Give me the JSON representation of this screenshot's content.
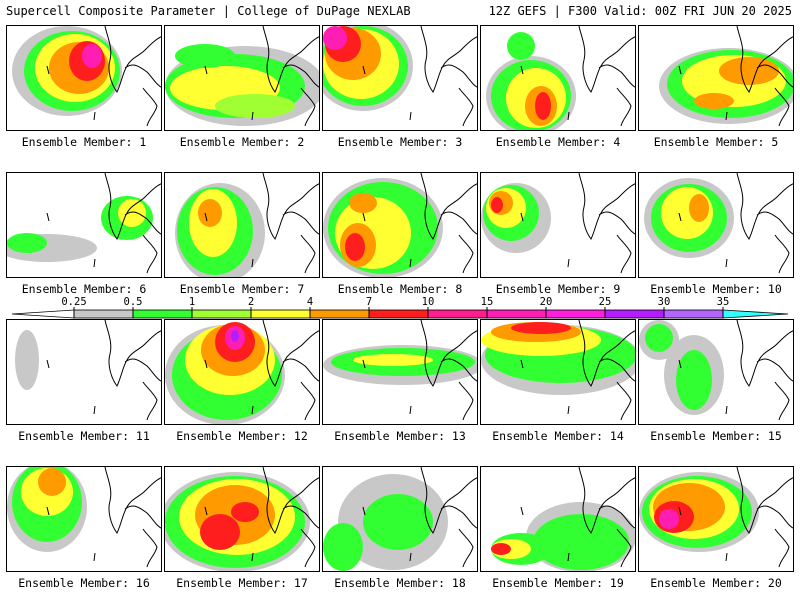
{
  "header": {
    "title": "Supercell Composite Parameter | College of DuPage NEXLAB",
    "run_info": "12Z GEFS | F300 Valid: 00Z FRI JUN 20 2025"
  },
  "panels": [
    {
      "label": "Ensemble Member: 1"
    },
    {
      "label": "Ensemble Member: 2"
    },
    {
      "label": "Ensemble Member: 3"
    },
    {
      "label": "Ensemble Member: 4"
    },
    {
      "label": "Ensemble Member: 5"
    },
    {
      "label": "Ensemble Member: 6"
    },
    {
      "label": "Ensemble Member: 7"
    },
    {
      "label": "Ensemble Member: 8"
    },
    {
      "label": "Ensemble Member: 9"
    },
    {
      "label": "Ensemble Member: 10"
    },
    {
      "label": "Ensemble Member: 11"
    },
    {
      "label": "Ensemble Member: 12"
    },
    {
      "label": "Ensemble Member: 13"
    },
    {
      "label": "Ensemble Member: 14"
    },
    {
      "label": "Ensemble Member: 15"
    },
    {
      "label": "Ensemble Member: 16"
    },
    {
      "label": "Ensemble Member: 17"
    },
    {
      "label": "Ensemble Member: 18"
    },
    {
      "label": "Ensemble Member: 19"
    },
    {
      "label": "Ensemble Member: 20"
    }
  ],
  "legend": {
    "thresholds": [
      "0.25",
      "0.5",
      "1",
      "2",
      "4",
      "7",
      "10",
      "15",
      "20",
      "25",
      "30",
      "35"
    ],
    "colors": [
      "#c8c8c8",
      "#32ff32",
      "#a0ff32",
      "#ffff32",
      "#ff9b00",
      "#ff1e1e",
      "#ff1e8c",
      "#ff1eb4",
      "#ff1edc",
      "#b41eff",
      "#b464ff",
      "#32ffff"
    ]
  },
  "colors": {
    "gray": "#c8c8c8",
    "green": "#32ff32",
    "lightgreen": "#a0ff32",
    "yellow": "#ffff32",
    "orange": "#ff9b00",
    "red": "#ff1e1e",
    "magenta": "#ff1eb4",
    "purple": "#b41eff"
  }
}
